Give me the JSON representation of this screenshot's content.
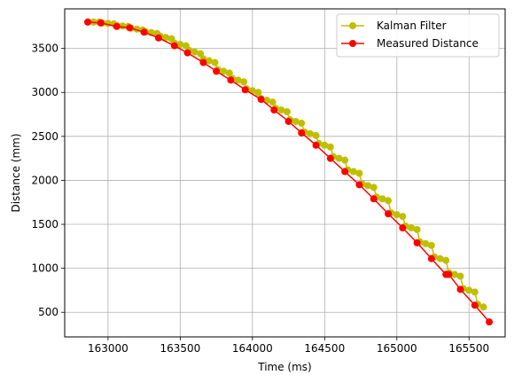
{
  "chart_data": {
    "type": "line",
    "title": "",
    "xlabel": "Time (ms)",
    "ylabel": "Distance (mm)",
    "xlim": [
      162700,
      165750
    ],
    "ylim": [
      220,
      3950
    ],
    "xticks": [
      163000,
      163500,
      164000,
      164500,
      165000,
      165500
    ],
    "yticks": [
      500,
      1000,
      1500,
      2000,
      2500,
      3000,
      3500
    ],
    "grid": true,
    "legend_position": "top-right",
    "series": [
      {
        "name": "Kalman Filter",
        "color": "#bfbf00",
        "marker": "circle",
        "x": [
          162860,
          162900,
          162940,
          162960,
          163000,
          163040,
          163060,
          163100,
          163140,
          163160,
          163200,
          163240,
          163260,
          163300,
          163340,
          163360,
          163400,
          163440,
          163460,
          163500,
          163540,
          163560,
          163600,
          163640,
          163660,
          163700,
          163740,
          163760,
          163800,
          163840,
          163860,
          163900,
          163940,
          163960,
          164000,
          164040,
          164060,
          164100,
          164140,
          164160,
          164200,
          164240,
          164260,
          164300,
          164340,
          164360,
          164400,
          164440,
          164460,
          164500,
          164540,
          164560,
          164600,
          164640,
          164660,
          164700,
          164740,
          164760,
          164800,
          164840,
          164860,
          164900,
          164940,
          164960,
          165000,
          165040,
          165060,
          165100,
          165140,
          165160,
          165200,
          165240,
          165260,
          165300,
          165340,
          165360,
          165400,
          165440,
          165460,
          165500,
          165540,
          165560,
          165600
        ],
        "y": [
          3800,
          3800,
          3800,
          3790,
          3785,
          3780,
          3760,
          3755,
          3750,
          3730,
          3720,
          3710,
          3690,
          3680,
          3670,
          3640,
          3625,
          3610,
          3560,
          3545,
          3530,
          3480,
          3460,
          3440,
          3380,
          3360,
          3340,
          3260,
          3240,
          3220,
          3160,
          3140,
          3120,
          3040,
          3020,
          3000,
          2930,
          2910,
          2890,
          2820,
          2800,
          2780,
          2690,
          2670,
          2650,
          2550,
          2530,
          2510,
          2420,
          2400,
          2380,
          2270,
          2250,
          2230,
          2120,
          2100,
          2080,
          1960,
          1940,
          1920,
          1810,
          1790,
          1770,
          1630,
          1610,
          1590,
          1480,
          1460,
          1440,
          1300,
          1280,
          1260,
          1130,
          1110,
          1090,
          950,
          930,
          910,
          770,
          750,
          730,
          590,
          560
        ]
      },
      {
        "name": "Measured Distance",
        "color": "#ff0000",
        "marker": "circle",
        "x": [
          162860,
          162950,
          163060,
          163150,
          163250,
          163350,
          163460,
          163550,
          163660,
          163750,
          163850,
          163950,
          164060,
          164150,
          164250,
          164340,
          164440,
          164540,
          164640,
          164740,
          164840,
          164940,
          165040,
          165140,
          165240,
          165340,
          165360,
          165440,
          165540,
          165640
        ],
        "y": [
          3800,
          3790,
          3750,
          3735,
          3685,
          3620,
          3530,
          3450,
          3340,
          3240,
          3140,
          3030,
          2920,
          2800,
          2670,
          2540,
          2400,
          2250,
          2100,
          1950,
          1790,
          1620,
          1460,
          1290,
          1110,
          930,
          930,
          760,
          580,
          390
        ]
      }
    ]
  }
}
